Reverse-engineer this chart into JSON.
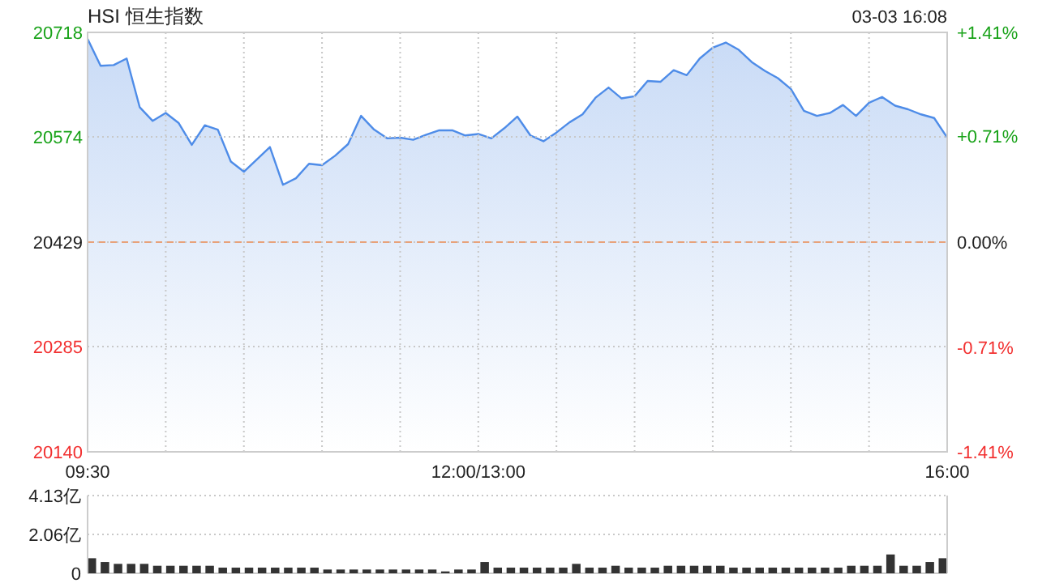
{
  "chart_data": [
    {
      "type": "area",
      "title": "HSI 恒生指数",
      "annotations": [
        "03-03 16:08"
      ],
      "categories": [
        "09:30",
        null,
        null,
        null,
        null,
        null,
        null,
        null,
        null,
        null,
        null,
        null,
        null,
        null,
        null,
        null,
        null,
        null,
        null,
        null,
        null,
        null,
        null,
        null,
        null,
        null,
        null,
        null,
        null,
        null,
        "12:00/13:00",
        null,
        null,
        null,
        null,
        null,
        null,
        null,
        null,
        null,
        null,
        null,
        null,
        null,
        null,
        null,
        null,
        null,
        null,
        null,
        null,
        null,
        null,
        null,
        null,
        null,
        null,
        null,
        null,
        null,
        null,
        null,
        null,
        null,
        null,
        null,
        "16:00"
      ],
      "series": [
        {
          "color": "#4e8ce8",
          "values": [
            20709,
            20672,
            20673,
            20682,
            20615,
            20596,
            20607,
            20593,
            20563,
            20590,
            20584,
            20540,
            20526,
            20543,
            20560,
            20508,
            20517,
            20537,
            20535,
            20548,
            20564,
            20603,
            20584,
            20572,
            20573,
            20570,
            20577,
            20583,
            20583,
            20576,
            20578,
            20572,
            20586,
            20602,
            20576,
            20568,
            20580,
            20594,
            20605,
            20628,
            20642,
            20627,
            20630,
            20651,
            20650,
            20666,
            20659,
            20682,
            20697,
            20704,
            20694,
            20677,
            20665,
            20655,
            20640,
            20610,
            20603,
            20607,
            20618,
            20603,
            20621,
            20629,
            20617,
            20612,
            20605,
            20600,
            20573
          ]
        }
      ],
      "ylim": [
        20140,
        20718
      ],
      "yticks": [
        20718,
        20574,
        20429,
        20285,
        20140
      ],
      "y2lim": [
        -1.41,
        1.41
      ],
      "y2ticks": [
        {
          "value": 1.41,
          "label": "+1.41%"
        },
        {
          "value": 0.71,
          "label": "+0.71%"
        },
        {
          "value": 0,
          "label": "0.00%"
        },
        {
          "value": -0.71,
          "label": "-0.71%"
        },
        {
          "value": -1.41,
          "label": "-1.41%"
        }
      ],
      "ref_lines": [
        {
          "axis": "y",
          "value": 20429,
          "color": "#e8a27a",
          "line_style": "dashed"
        }
      ],
      "grid": true
    },
    {
      "type": "bar",
      "color": "#333333",
      "categories": [
        null,
        null,
        null,
        null,
        null,
        null,
        null,
        null,
        null,
        null,
        null,
        null,
        null,
        null,
        null,
        null,
        null,
        null,
        null,
        null,
        null,
        null,
        null,
        null,
        null,
        null,
        null,
        null,
        null,
        null,
        null,
        null,
        null,
        null,
        null,
        null,
        null,
        null,
        null,
        null,
        null,
        null,
        null,
        null,
        null,
        null,
        null,
        null,
        null,
        null,
        null,
        null,
        null,
        null,
        null,
        null,
        null,
        null,
        null,
        null,
        null,
        null,
        null,
        null,
        null,
        null
      ],
      "values": [
        0.8,
        0.6,
        0.5,
        0.5,
        0.5,
        0.4,
        0.4,
        0.4,
        0.4,
        0.4,
        0.3,
        0.3,
        0.3,
        0.3,
        0.3,
        0.3,
        0.3,
        0.3,
        0.2,
        0.2,
        0.2,
        0.2,
        0.2,
        0.2,
        0.2,
        0.2,
        0.2,
        0.1,
        0.2,
        0.2,
        0.6,
        0.3,
        0.3,
        0.3,
        0.3,
        0.3,
        0.3,
        0.5,
        0.3,
        0.3,
        0.4,
        0.3,
        0.3,
        0.3,
        0.4,
        0.4,
        0.4,
        0.4,
        0.4,
        0.3,
        0.3,
        0.3,
        0.3,
        0.3,
        0.3,
        0.3,
        0.3,
        0.3,
        0.4,
        0.4,
        0.4,
        1.0,
        0.4,
        0.4,
        0.6,
        0.8
      ],
      "ylim": [
        0,
        4.13
      ],
      "yticks": [
        {
          "value": 4.13,
          "label": "4.13亿"
        },
        {
          "value": 2.06,
          "label": "2.06亿"
        },
        0
      ],
      "tick_labels": "y",
      "grid": "y"
    }
  ]
}
